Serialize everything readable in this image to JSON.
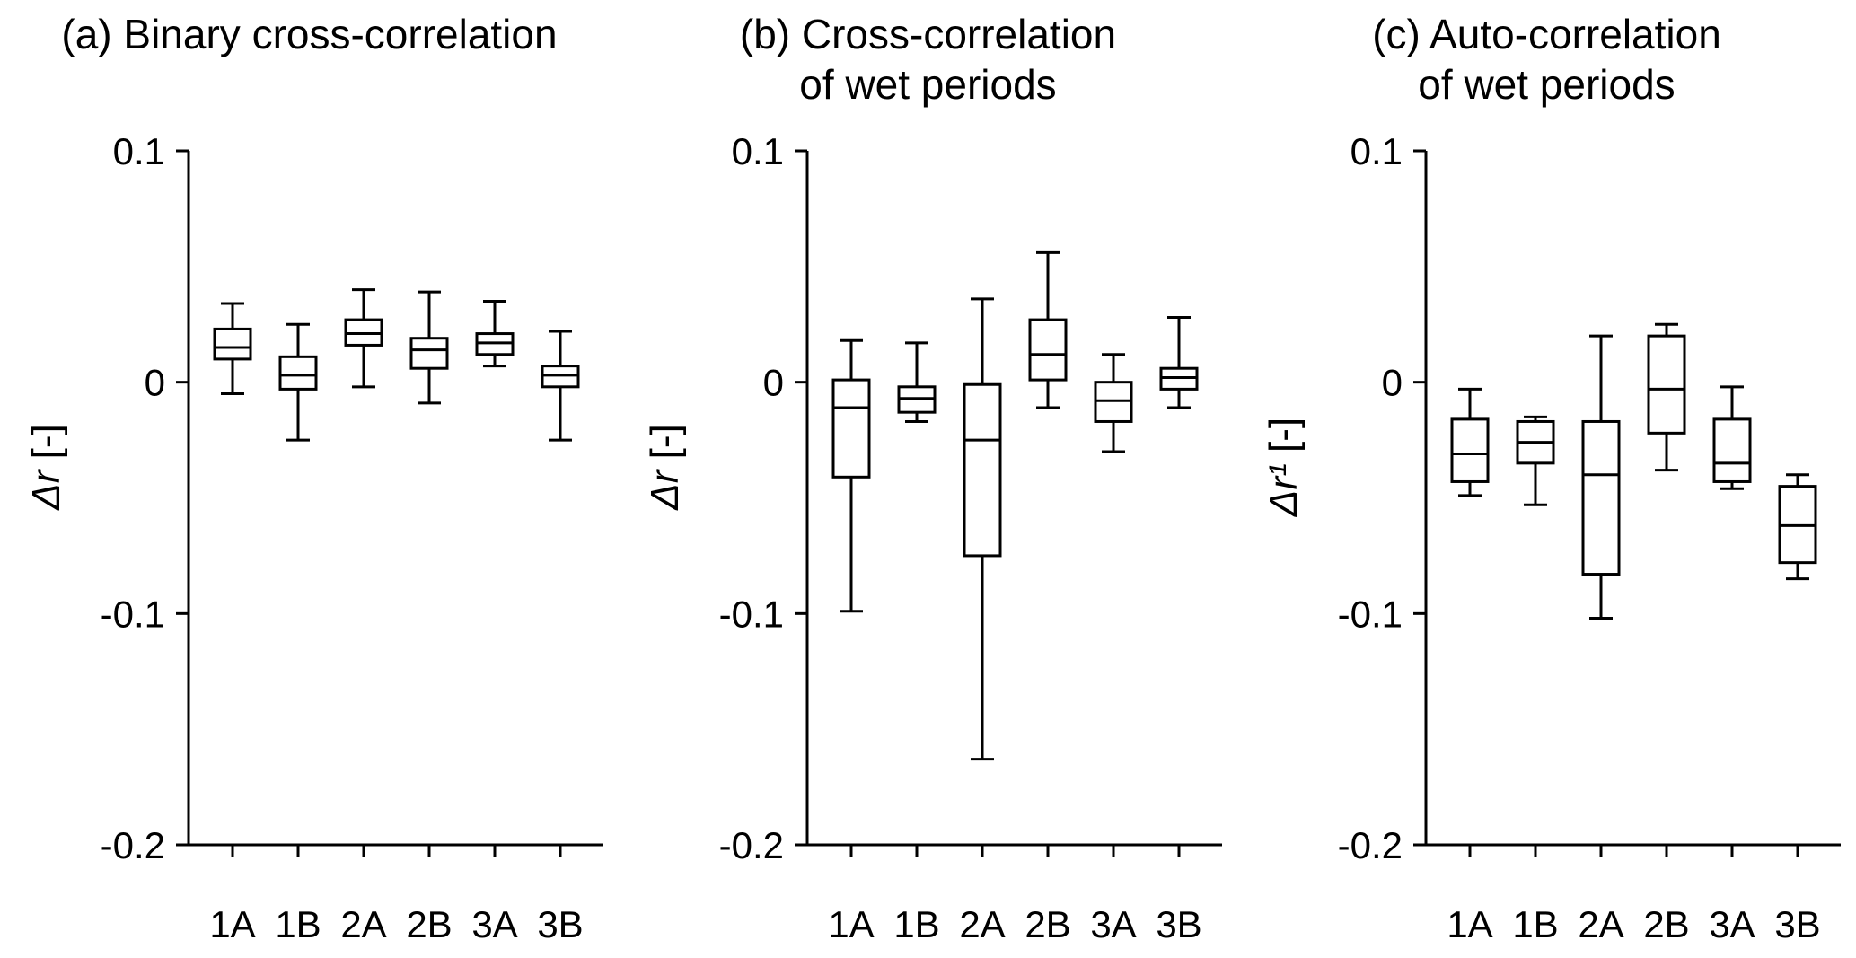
{
  "figure": {
    "background": "#ffffff",
    "line_color": "#000000",
    "text_color": "#000000"
  },
  "chart_data": [
    {
      "type": "boxplot",
      "title": "(a) Binary cross-correlation",
      "ylabel": "Δr [-]",
      "xlabel": "",
      "categories": [
        "1A",
        "1B",
        "2A",
        "2B",
        "3A",
        "3B"
      ],
      "ylim": [
        -0.2,
        0.1
      ],
      "grid": false,
      "legend": "none",
      "yticks": [
        {
          "label": "0.1",
          "value": 0.1
        },
        {
          "label": "0",
          "value": 0
        },
        {
          "label": "-0.1",
          "value": -0.1
        },
        {
          "label": "-0.2",
          "value": -0.2
        }
      ],
      "boxes": [
        {
          "category": "1A",
          "low": -0.005,
          "q1": 0.01,
          "median": 0.015,
          "q3": 0.023,
          "high": 0.034
        },
        {
          "category": "1B",
          "low": -0.025,
          "q1": -0.003,
          "median": 0.003,
          "q3": 0.011,
          "high": 0.025
        },
        {
          "category": "2A",
          "low": -0.002,
          "q1": 0.016,
          "median": 0.021,
          "q3": 0.027,
          "high": 0.04
        },
        {
          "category": "2B",
          "low": -0.009,
          "q1": 0.006,
          "median": 0.014,
          "q3": 0.019,
          "high": 0.039
        },
        {
          "category": "3A",
          "low": 0.007,
          "q1": 0.012,
          "median": 0.017,
          "q3": 0.021,
          "high": 0.035
        },
        {
          "category": "3B",
          "low": -0.025,
          "q1": -0.002,
          "median": 0.003,
          "q3": 0.007,
          "high": 0.022
        }
      ]
    },
    {
      "type": "boxplot",
      "title": "(b) Cross-correlation\nof wet periods",
      "ylabel": "Δr [-]",
      "xlabel": "",
      "categories": [
        "1A",
        "1B",
        "2A",
        "2B",
        "3A",
        "3B"
      ],
      "ylim": [
        -0.2,
        0.1
      ],
      "grid": false,
      "legend": "none",
      "yticks": [
        {
          "label": "0.1",
          "value": 0.1
        },
        {
          "label": "0",
          "value": 0
        },
        {
          "label": "-0.1",
          "value": -0.1
        },
        {
          "label": "-0.2",
          "value": -0.2
        }
      ],
      "boxes": [
        {
          "category": "1A",
          "low": -0.099,
          "q1": -0.041,
          "median": -0.011,
          "q3": 0.001,
          "high": 0.018
        },
        {
          "category": "1B",
          "low": -0.017,
          "q1": -0.013,
          "median": -0.007,
          "q3": -0.002,
          "high": 0.017
        },
        {
          "category": "2A",
          "low": -0.163,
          "q1": -0.075,
          "median": -0.025,
          "q3": -0.001,
          "high": 0.036
        },
        {
          "category": "2B",
          "low": -0.011,
          "q1": 0.001,
          "median": 0.012,
          "q3": 0.027,
          "high": 0.056
        },
        {
          "category": "3A",
          "low": -0.03,
          "q1": -0.017,
          "median": -0.008,
          "q3": 0.0,
          "high": 0.012
        },
        {
          "category": "3B",
          "low": -0.011,
          "q1": -0.003,
          "median": 0.002,
          "q3": 0.006,
          "high": 0.028
        }
      ]
    },
    {
      "type": "boxplot",
      "title": "(c) Auto-correlation\nof wet periods",
      "ylabel": "Δr¹ [-]",
      "xlabel": "",
      "categories": [
        "1A",
        "1B",
        "2A",
        "2B",
        "3A",
        "3B"
      ],
      "ylim": [
        -0.2,
        0.1
      ],
      "grid": false,
      "legend": "none",
      "yticks": [
        {
          "label": "0.1",
          "value": 0.1
        },
        {
          "label": "0",
          "value": 0
        },
        {
          "label": "-0.1",
          "value": -0.1
        },
        {
          "label": "-0.2",
          "value": -0.2
        }
      ],
      "boxes": [
        {
          "category": "1A",
          "low": -0.049,
          "q1": -0.043,
          "median": -0.031,
          "q3": -0.016,
          "high": -0.003
        },
        {
          "category": "1B",
          "low": -0.053,
          "q1": -0.035,
          "median": -0.026,
          "q3": -0.017,
          "high": -0.015
        },
        {
          "category": "2A",
          "low": -0.102,
          "q1": -0.083,
          "median": -0.04,
          "q3": -0.017,
          "high": 0.02
        },
        {
          "category": "2B",
          "low": -0.038,
          "q1": -0.022,
          "median": -0.003,
          "q3": 0.02,
          "high": 0.025
        },
        {
          "category": "3A",
          "low": -0.046,
          "q1": -0.043,
          "median": -0.035,
          "q3": -0.016,
          "high": -0.002
        },
        {
          "category": "3B",
          "low": -0.085,
          "q1": -0.078,
          "median": -0.062,
          "q3": -0.045,
          "high": -0.04
        }
      ]
    }
  ]
}
